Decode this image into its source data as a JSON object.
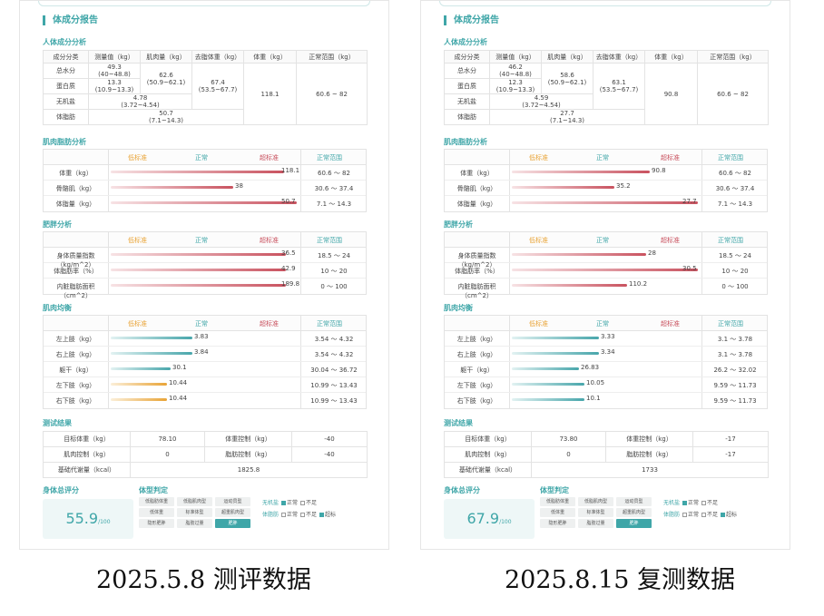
{
  "report_title": "体成分报告",
  "sections": {
    "composition": "人体成分分析",
    "muscle_fat": "肌肉脂肪分析",
    "obesity": "肥胖分析",
    "balance": "肌肉均衡",
    "results": "测试结果",
    "score": "身体总评分",
    "body_type": "体型判定"
  },
  "comp_headers": [
    "成分分类",
    "测量值（kg）",
    "肌肉量（kg）",
    "去脂体重（kg）",
    "体重（kg）",
    "正常范围（kg）"
  ],
  "comp_rows": [
    "总水分",
    "蛋白质",
    "无机盐",
    "体脂肪"
  ],
  "level_headers": {
    "low": "低标准",
    "normal": "正常",
    "high": "超标准",
    "range": "正常范围"
  },
  "mf_labels": [
    "体重（kg）",
    "骨骼肌（kg）",
    "体脂量（kg）"
  ],
  "ob_labels": [
    "身体质量指数（kg/m^2）",
    "体脂肪率（%）",
    "内脏脂肪面积（cm^2）"
  ],
  "bal_labels": [
    "左上肢（kg）",
    "右上肢（kg）",
    "躯干（kg）",
    "左下肢（kg）",
    "右下肢（kg）"
  ],
  "res_labels": {
    "target": "目标体重（kg）",
    "weight_ctrl": "体重控制（kg）",
    "muscle_ctrl": "肌肉控制（kg）",
    "fat_ctrl": "脂肪控制（kg）",
    "bmr": "基础代谢量（kcal）"
  },
  "score_unit": "/100",
  "body_types": [
    "低脂肪体重",
    "低脂肌肉型",
    "运动员型",
    "低体重",
    "标准体型",
    "超重肌肉型",
    "隐形肥胖",
    "脂肪过量",
    "肥胖"
  ],
  "judge": {
    "inorganic": "无机盐",
    "body_fat": "体脂肪",
    "normal": "正常",
    "insufficient": "不足",
    "excess": "超标"
  },
  "reports": [
    {
      "caption": "2025.5.8 测评数据",
      "comp": {
        "water": "49.3\n(40~48.8)",
        "protein": "13.3\n(10.9~13.3)",
        "mineral": "4.78\n(3.72~4.54)",
        "fat": "50.7\n(7.1~14.3)",
        "muscle": "62.6\n(50.9~62.1)",
        "ffm": "67.4\n(53.5~67.7)",
        "weight": "118.1",
        "range": "60.6 ~ 82"
      },
      "muscle_fat": [
        {
          "value": "118.1",
          "range": "60.6 ～ 82",
          "level": 0.93
        },
        {
          "value": "38",
          "range": "30.6 ～ 37.4",
          "level": 0.66
        },
        {
          "value": "50.7",
          "range": "7.1 ～ 14.3",
          "level": 1.0
        }
      ],
      "obesity": [
        {
          "value": "36.5",
          "range": "18.5 ～ 24",
          "level": 0.94
        },
        {
          "value": "42.9",
          "range": "10 ～ 20",
          "level": 0.94
        },
        {
          "value": "189.8",
          "range": "0 ～ 100",
          "level": 0.94
        }
      ],
      "balance": [
        {
          "value": "3.83",
          "range": "3.54 ～ 4.32",
          "level": 0.44,
          "color": "teal"
        },
        {
          "value": "3.84",
          "range": "3.54 ～ 4.32",
          "level": 0.44,
          "color": "teal"
        },
        {
          "value": "30.1",
          "range": "30.04 ～ 36.72",
          "level": 0.32,
          "color": "teal"
        },
        {
          "value": "10.44",
          "range": "10.99 ～ 13.43",
          "level": 0.3,
          "color": "orange"
        },
        {
          "value": "10.44",
          "range": "10.99 ～ 13.43",
          "level": 0.3,
          "color": "orange"
        }
      ],
      "results": {
        "target": "78.10",
        "weight_ctrl": "-40",
        "muscle_ctrl": "0",
        "fat_ctrl": "-40",
        "bmr": "1825.8"
      },
      "score": "55.9",
      "selected_type": 8,
      "inorganic_state": 0,
      "fat_state": 2
    },
    {
      "caption": "2025.8.15 复测数据",
      "comp": {
        "water": "46.2\n(40~48.8)",
        "protein": "12.3\n(10.9~13.3)",
        "mineral": "4.59\n(3.72~4.54)",
        "fat": "27.7\n(7.1~14.3)",
        "muscle": "58.6\n(50.9~62.1)",
        "ffm": "63.1\n(53.5~67.7)",
        "weight": "90.8",
        "range": "60.6 ~ 82"
      },
      "muscle_fat": [
        {
          "value": "90.8",
          "range": "60.6 ～ 82",
          "level": 0.74
        },
        {
          "value": "35.2",
          "range": "30.6 ～ 37.4",
          "level": 0.55
        },
        {
          "value": "27.7",
          "range": "7.1 ～ 14.3",
          "level": 1.0
        }
      ],
      "obesity": [
        {
          "value": "28",
          "range": "18.5 ～ 24",
          "level": 0.72
        },
        {
          "value": "30.5",
          "range": "10 ～ 20",
          "level": 1.0
        },
        {
          "value": "110.2",
          "range": "0 ～ 100",
          "level": 0.62
        }
      ],
      "balance": [
        {
          "value": "3.33",
          "range": "3.1 ～ 3.78",
          "level": 0.47,
          "color": "teal"
        },
        {
          "value": "3.34",
          "range": "3.1 ～ 3.78",
          "level": 0.47,
          "color": "teal"
        },
        {
          "value": "26.83",
          "range": "26.2 ～ 32.02",
          "level": 0.36,
          "color": "teal"
        },
        {
          "value": "10.05",
          "range": "9.59 ～ 11.73",
          "level": 0.39,
          "color": "teal"
        },
        {
          "value": "10.1",
          "range": "9.59 ～ 11.73",
          "level": 0.39,
          "color": "teal"
        }
      ],
      "results": {
        "target": "73.80",
        "weight_ctrl": "-17",
        "muscle_ctrl": "0",
        "fat_ctrl": "-17",
        "bmr": "1733"
      },
      "score": "67.9",
      "selected_type": 8,
      "inorganic_state": 0,
      "fat_state": 2
    }
  ]
}
